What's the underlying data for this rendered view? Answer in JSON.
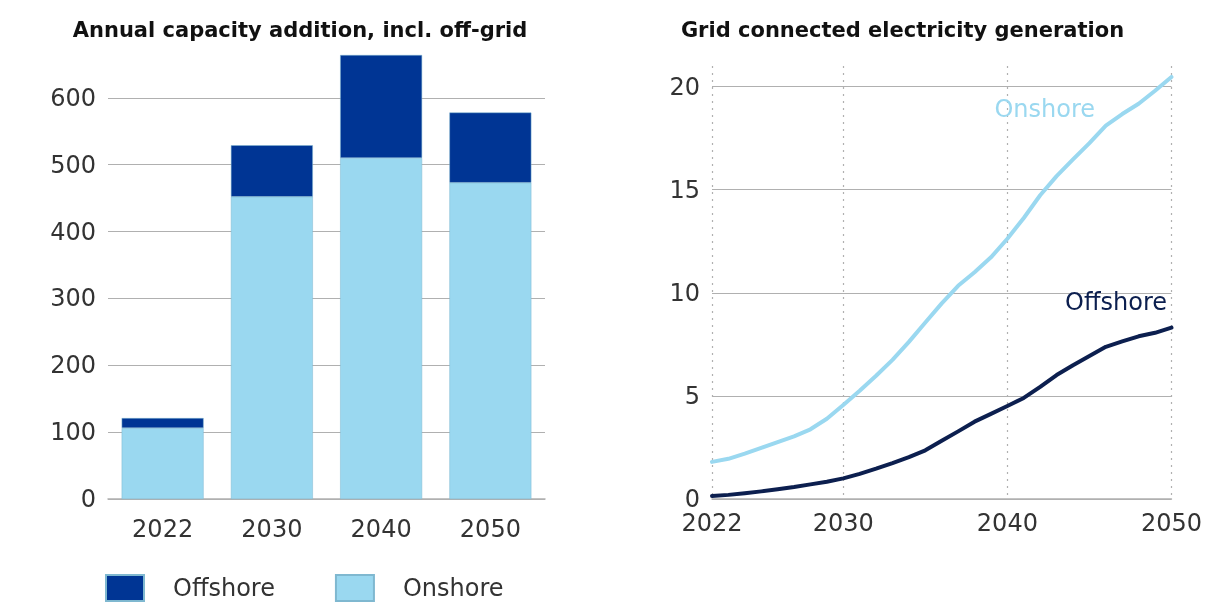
{
  "chart_data": [
    {
      "type": "bar",
      "title": "Annual capacity addition, incl. off-grid",
      "categories": [
        "2022",
        "2030",
        "2040",
        "2050"
      ],
      "stacked": true,
      "series": [
        {
          "name": "Onshore",
          "color": "#9ad8f0",
          "values": [
            106,
            452,
            510,
            473
          ]
        },
        {
          "name": "Offshore",
          "color": "#003594",
          "values": [
            15,
            77,
            154,
            105
          ]
        }
      ],
      "ylim": [
        0,
        664
      ],
      "yticks": [
        0,
        100,
        200,
        300,
        400,
        500,
        600
      ],
      "grid": "y",
      "legend": "bottom"
    },
    {
      "type": "line",
      "title": "Grid connected electricity generation",
      "x": [
        2022,
        2023,
        2024,
        2025,
        2026,
        2027,
        2028,
        2029,
        2030,
        2031,
        2032,
        2033,
        2034,
        2035,
        2036,
        2037,
        2038,
        2039,
        2040,
        2041,
        2042,
        2043,
        2044,
        2045,
        2046,
        2047,
        2048,
        2049,
        2050
      ],
      "series": [
        {
          "name": "Onshore",
          "color": "#9ad8f0",
          "values": [
            1.8,
            1.95,
            2.2,
            2.48,
            2.76,
            3.04,
            3.38,
            3.89,
            4.56,
            5.25,
            5.98,
            6.75,
            7.62,
            8.56,
            9.49,
            10.34,
            11.0,
            11.72,
            12.62,
            13.63,
            14.73,
            15.66,
            16.47,
            17.26,
            18.11,
            18.67,
            19.17,
            19.8,
            20.47
          ]
        },
        {
          "name": "Offshore",
          "color": "#0c1f4f",
          "values": [
            0.15,
            0.2,
            0.28,
            0.37,
            0.47,
            0.58,
            0.71,
            0.84,
            1.0,
            1.22,
            1.47,
            1.74,
            2.03,
            2.36,
            2.82,
            3.28,
            3.75,
            4.13,
            4.51,
            4.9,
            5.44,
            6.01,
            6.49,
            6.93,
            7.38,
            7.64,
            7.89,
            8.06,
            8.31
          ]
        }
      ],
      "xlim": [
        2022,
        2050
      ],
      "xticks": [
        2022,
        2030,
        2040,
        2050
      ],
      "ylim": [
        0,
        21
      ],
      "yticks": [
        0,
        5,
        10,
        15,
        20
      ],
      "grid": true,
      "legend": false,
      "marker": "none",
      "line_style": "solid"
    }
  ]
}
